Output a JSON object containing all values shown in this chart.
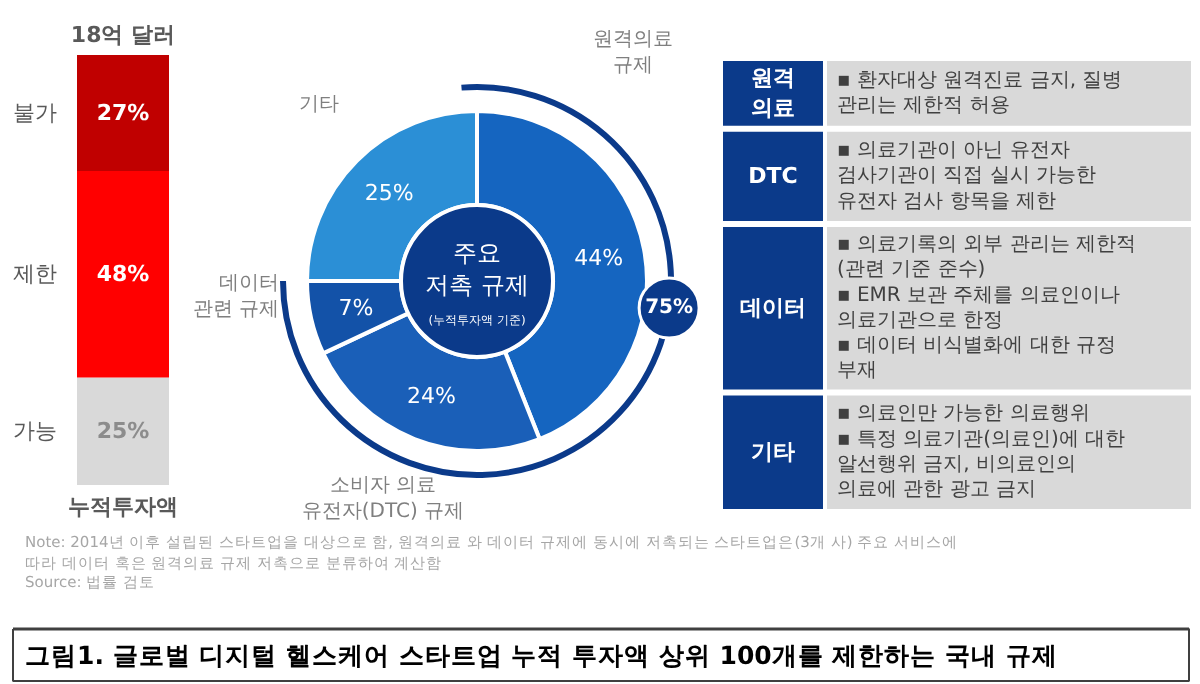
{
  "chart_data": [
    {
      "type": "bar",
      "stacked": true,
      "categories": [
        null
      ],
      "xlabel": "누적투자액",
      "annotations": [
        "18억 달러"
      ],
      "series": [
        {
          "name": "가능",
          "color": "#d9d9d9",
          "values": [
            25
          ],
          "value_labels": [
            "25%"
          ]
        },
        {
          "name": "제한",
          "color": "#ff0000",
          "values": [
            48
          ],
          "value_labels": [
            "48%"
          ]
        },
        {
          "name": "불가",
          "color": "#c00000",
          "values": [
            27
          ],
          "value_labels": [
            "27%"
          ]
        }
      ]
    },
    {
      "type": "donut",
      "categories": [
        "원격의료\n규제",
        "소비자 의료\n유전자(DTC) 규제",
        "데이터\n관련 규제",
        "기타"
      ],
      "values": [
        44,
        24,
        7,
        25
      ],
      "colors": [
        "#1565c0",
        "#1a5fb8",
        "#1352a8",
        "#2b8fd6"
      ],
      "value_labels": [
        "44%",
        "24%",
        "7%",
        "25%"
      ],
      "annotations": [
        "주요\n저촉 규제",
        "(누적투자액 기준)",
        "75%"
      ]
    },
    {
      "type": "other",
      "categories": [
        "원격\n의료",
        "DTC",
        "데이터",
        "기타"
      ],
      "annotations": [
        "▪ 환자대상 원격진료 금지, 질병\n   관리는 제한적 허용",
        "▪ 의료기관이 아닌 유전자\n   검사기관이 직접 실시 가능한\n   유전자 검사 항목을 제한",
        "▪ 의료기록의 외부 관리는 제한적\n   (관련 기준 준수)\n▪ EMR 보관 주체를 의료인이나\n   의료기관으로 한정\n▪ 데이터 비식별화에 대한 규정\n   부재",
        "▪ 의료인만 가능한 의료행위\n▪ 특정 의료기관(의료인)에 대한\n   알선행위 금지, 비의료인의\n   의료에 관한 광고 금지"
      ]
    },
    {
      "type": "other",
      "title": "그림1. 글로벌 디지털 헬스케어 스타트업 누적 투자액 상위 100개를 제한하는 국내 규제",
      "annotations": [
        "Note: 2014년 이후 설립된 스타트업을 대상으로 함, 원격의료 와 데이터 규제에 동시에 저촉되는 스타트업은(3개 사) 주요 서비스에\n          따라 데이터 혹은 원격의료 규제 저촉으로 분류하여 계산함",
        "Source: 법률 검토"
      ]
    }
  ]
}
